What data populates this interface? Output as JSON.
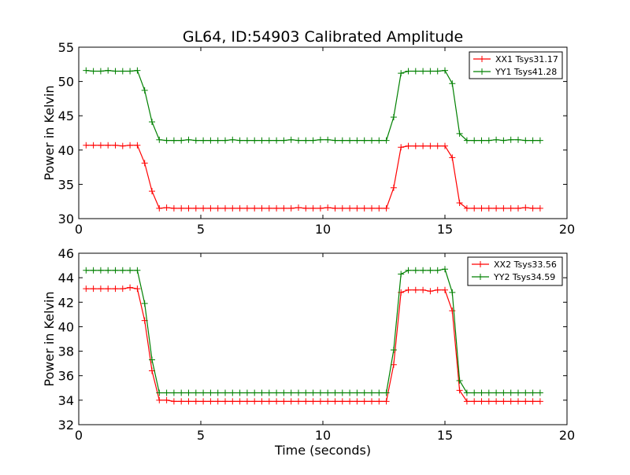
{
  "chart_data": [
    {
      "type": "line",
      "title": "GL64, ID:54903 Calibrated Amplitude",
      "xlabel": "",
      "ylabel": "Power in Kelvin",
      "xlim": [
        0,
        20
      ],
      "ylim": [
        30,
        55
      ],
      "xticks": [
        0,
        5,
        10,
        15,
        20
      ],
      "yticks": [
        30,
        35,
        40,
        45,
        50,
        55
      ],
      "grid": false,
      "legend_position": "top-right",
      "x": [
        0.3,
        0.6,
        0.9,
        1.2,
        1.5,
        1.8,
        2.1,
        2.4,
        2.7,
        3.0,
        3.3,
        3.6,
        3.9,
        4.2,
        4.5,
        4.8,
        5.1,
        5.4,
        5.7,
        6.0,
        6.3,
        6.6,
        6.9,
        7.2,
        7.5,
        7.8,
        8.1,
        8.4,
        8.7,
        9.0,
        9.3,
        9.6,
        9.9,
        10.2,
        10.5,
        10.8,
        11.1,
        11.4,
        11.7,
        12.0,
        12.3,
        12.6,
        12.9,
        13.2,
        13.5,
        13.8,
        14.1,
        14.4,
        14.7,
        15.0,
        15.3,
        15.6,
        15.9,
        16.2,
        16.5,
        16.8,
        17.1,
        17.4,
        17.7,
        18.0,
        18.3,
        18.6,
        18.9
      ],
      "series": [
        {
          "name": "XX1 Tsys31.17",
          "color": "#ff0000",
          "values": [
            40.7,
            40.7,
            40.7,
            40.7,
            40.7,
            40.6,
            40.7,
            40.7,
            38.1,
            34.0,
            31.5,
            31.6,
            31.5,
            31.5,
            31.5,
            31.5,
            31.5,
            31.5,
            31.5,
            31.5,
            31.5,
            31.5,
            31.5,
            31.5,
            31.5,
            31.5,
            31.5,
            31.5,
            31.5,
            31.6,
            31.5,
            31.5,
            31.5,
            31.6,
            31.5,
            31.5,
            31.5,
            31.5,
            31.5,
            31.5,
            31.5,
            31.5,
            34.5,
            40.4,
            40.6,
            40.6,
            40.6,
            40.6,
            40.6,
            40.6,
            38.9,
            32.3,
            31.5,
            31.5,
            31.5,
            31.5,
            31.5,
            31.5,
            31.5,
            31.5,
            31.6,
            31.5,
            31.5
          ]
        },
        {
          "name": "YY1 Tsys41.28",
          "color": "#008000",
          "values": [
            51.6,
            51.5,
            51.5,
            51.6,
            51.5,
            51.5,
            51.5,
            51.6,
            48.7,
            44.1,
            41.5,
            41.4,
            41.4,
            41.4,
            41.5,
            41.4,
            41.4,
            41.4,
            41.4,
            41.4,
            41.5,
            41.4,
            41.4,
            41.4,
            41.4,
            41.4,
            41.4,
            41.4,
            41.5,
            41.4,
            41.4,
            41.4,
            41.5,
            41.5,
            41.4,
            41.4,
            41.4,
            41.4,
            41.4,
            41.4,
            41.4,
            41.4,
            44.8,
            51.2,
            51.5,
            51.5,
            51.5,
            51.5,
            51.5,
            51.6,
            49.7,
            42.4,
            41.4,
            41.4,
            41.4,
            41.4,
            41.5,
            41.4,
            41.5,
            41.5,
            41.4,
            41.4,
            41.4
          ]
        }
      ]
    },
    {
      "type": "line",
      "title": "",
      "xlabel": "Time (seconds)",
      "ylabel": "Power in Kelvin",
      "xlim": [
        0,
        20
      ],
      "ylim": [
        32,
        46
      ],
      "xticks": [
        0,
        5,
        10,
        15,
        20
      ],
      "yticks": [
        32,
        34,
        36,
        38,
        40,
        42,
        44,
        46
      ],
      "grid": false,
      "legend_position": "top-right",
      "x": [
        0.3,
        0.6,
        0.9,
        1.2,
        1.5,
        1.8,
        2.1,
        2.4,
        2.7,
        3.0,
        3.3,
        3.6,
        3.9,
        4.2,
        4.5,
        4.8,
        5.1,
        5.4,
        5.7,
        6.0,
        6.3,
        6.6,
        6.9,
        7.2,
        7.5,
        7.8,
        8.1,
        8.4,
        8.7,
        9.0,
        9.3,
        9.6,
        9.9,
        10.2,
        10.5,
        10.8,
        11.1,
        11.4,
        11.7,
        12.0,
        12.3,
        12.6,
        12.9,
        13.2,
        13.5,
        13.8,
        14.1,
        14.4,
        14.7,
        15.0,
        15.3,
        15.6,
        15.9,
        16.2,
        16.5,
        16.8,
        17.1,
        17.4,
        17.7,
        18.0,
        18.3,
        18.6,
        18.9
      ],
      "series": [
        {
          "name": "XX2 Tsys33.56",
          "color": "#ff0000",
          "values": [
            43.1,
            43.1,
            43.1,
            43.1,
            43.1,
            43.1,
            43.2,
            43.1,
            40.5,
            36.4,
            34.0,
            34.0,
            33.9,
            33.9,
            33.9,
            33.9,
            33.9,
            33.9,
            33.9,
            33.9,
            33.9,
            33.9,
            33.9,
            33.9,
            33.9,
            33.9,
            33.9,
            33.9,
            33.9,
            33.9,
            33.9,
            33.9,
            33.9,
            33.9,
            33.9,
            33.9,
            33.9,
            33.9,
            33.9,
            33.9,
            33.9,
            33.9,
            36.9,
            42.8,
            43.0,
            43.0,
            43.0,
            42.9,
            43.0,
            43.0,
            41.3,
            34.8,
            33.9,
            33.9,
            33.9,
            33.9,
            33.9,
            33.9,
            33.9,
            33.9,
            33.9,
            33.9,
            33.9
          ]
        },
        {
          "name": "YY2 Tsys34.59",
          "color": "#008000",
          "values": [
            44.6,
            44.6,
            44.6,
            44.6,
            44.6,
            44.6,
            44.6,
            44.6,
            41.9,
            37.3,
            34.6,
            34.6,
            34.6,
            34.6,
            34.6,
            34.6,
            34.6,
            34.6,
            34.6,
            34.6,
            34.6,
            34.6,
            34.6,
            34.6,
            34.6,
            34.6,
            34.6,
            34.6,
            34.6,
            34.6,
            34.6,
            34.6,
            34.6,
            34.6,
            34.6,
            34.6,
            34.6,
            34.6,
            34.6,
            34.6,
            34.6,
            34.6,
            38.1,
            44.3,
            44.6,
            44.6,
            44.6,
            44.6,
            44.6,
            44.7,
            42.8,
            35.6,
            34.6,
            34.6,
            34.6,
            34.6,
            34.6,
            34.6,
            34.6,
            34.6,
            34.6,
            34.6,
            34.6
          ]
        }
      ]
    }
  ]
}
